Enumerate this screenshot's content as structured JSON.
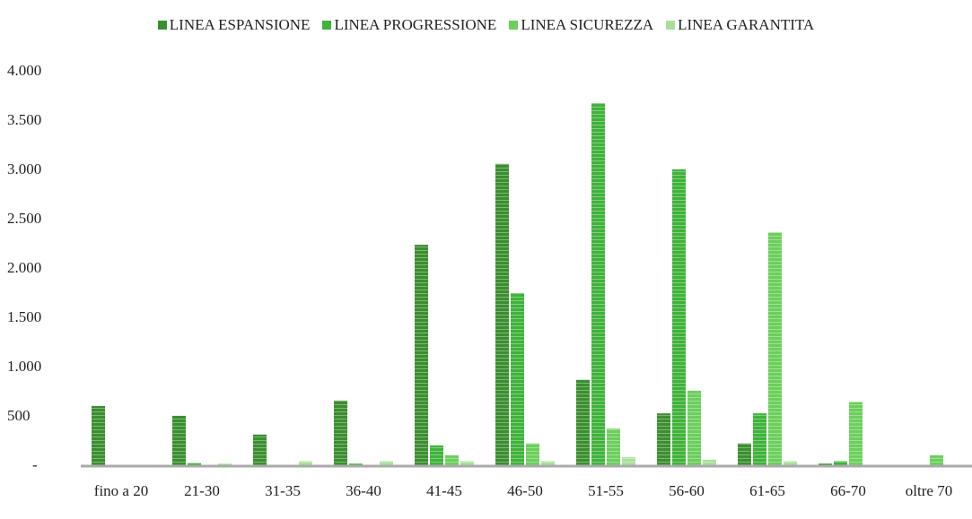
{
  "chart_data": {
    "type": "bar",
    "categories": [
      "fino a 20",
      "21-30",
      "31-35",
      "36-40",
      "41-45",
      "46-50",
      "51-55",
      "56-60",
      "61-65",
      "66-70",
      "oltre 70"
    ],
    "series": [
      {
        "name": "LINEA ESPANSIONE",
        "color": "#3a8f2e",
        "values": [
          610,
          510,
          320,
          665,
          2245,
          3065,
          875,
          535,
          230,
          25,
          0
        ]
      },
      {
        "name": "LINEA PROGRESSIONE",
        "color": "#3fb33a",
        "values": [
          0,
          30,
          0,
          25,
          210,
          1755,
          3680,
          3010,
          535,
          50,
          0
        ]
      },
      {
        "name": "LINEA SICUREZZA",
        "color": "#6ccf5c",
        "values": [
          0,
          0,
          0,
          0,
          110,
          230,
          380,
          765,
          2370,
          650,
          110
        ]
      },
      {
        "name": "LINEA GARANTITA",
        "color": "#a8e09a",
        "values": [
          0,
          25,
          50,
          50,
          50,
          50,
          90,
          65,
          50,
          0,
          0
        ]
      }
    ],
    "ylim": [
      0,
      4000
    ],
    "yticks": [
      {
        "value": 0,
        "label": "-"
      },
      500,
      {
        "value": 1000,
        "label": "1.000"
      },
      {
        "value": 1500,
        "label": "1.500"
      },
      {
        "value": 2000,
        "label": "2.000"
      },
      {
        "value": 2500,
        "label": "2.500"
      },
      {
        "value": 3000,
        "label": "3.000"
      },
      {
        "value": 3500,
        "label": "3.500"
      },
      {
        "value": 4000,
        "label": "4.000"
      }
    ],
    "grid": false,
    "legend": "top"
  }
}
